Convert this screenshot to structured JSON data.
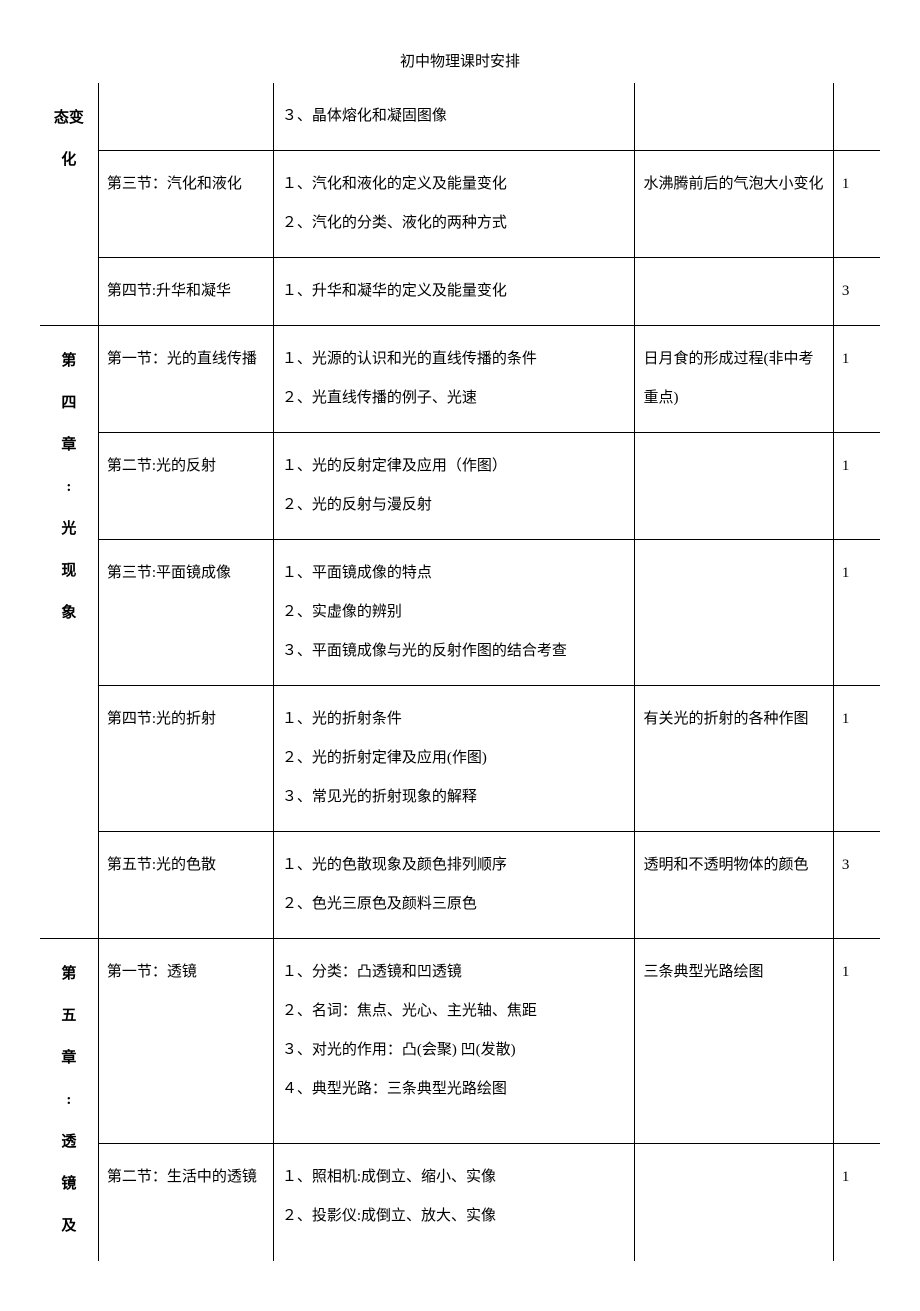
{
  "page_title": "初中物理课时安排",
  "table": {
    "column_widths": {
      "chapter": 50,
      "section": 150,
      "content": 310,
      "note": 170,
      "hours": 40
    },
    "font_size": 15,
    "line_height": 2.6,
    "border_color": "#000000",
    "text_color": "#000000",
    "background_color": "#ffffff",
    "rows": [
      {
        "chapter": "态变化",
        "chapter_continues": true,
        "sections": [
          {
            "section": "",
            "content": "３、晶体熔化和凝固图像",
            "note": "",
            "hours": "",
            "continues_from_above": true
          },
          {
            "section": "第三节：汽化和液化",
            "content": "１、汽化和液化的定义及能量变化\n２、汽化的分类、液化的两种方式",
            "note": "水沸腾前后的气泡大小变化",
            "hours": "1"
          },
          {
            "section": "第四节:升华和凝华",
            "content": "１、升华和凝华的定义及能量变化",
            "note": "",
            "hours": "3"
          }
        ]
      },
      {
        "chapter": "第四章:光现象",
        "sections": [
          {
            "section": "第一节：光的直线传播",
            "content": "１、光源的认识和光的直线传播的条件\n２、光直线传播的例子、光速",
            "note": "日月食的形成过程(非中考重点)",
            "hours": "1"
          },
          {
            "section": "第二节:光的反射",
            "content": "１、光的反射定律及应用（作图）\n２、光的反射与漫反射",
            "note": "",
            "hours": "1"
          },
          {
            "section": "第三节:平面镜成像",
            "content": "１、平面镜成像的特点\n２、实虚像的辨别\n３、平面镜成像与光的反射作图的结合考查",
            "note": "",
            "hours": "1"
          },
          {
            "section": "第四节:光的折射",
            "content": "１、光的折射条件\n２、光的折射定律及应用(作图)\n３、常见光的折射现象的解释",
            "note": "有关光的折射的各种作图",
            "hours": "1"
          },
          {
            "section": "第五节:光的色散",
            "content": "１、光的色散现象及颜色排列顺序\n２、色光三原色及颜料三原色",
            "note": "透明和不透明物体的颜色",
            "hours": "3"
          }
        ]
      },
      {
        "chapter": "第五章:透镜及",
        "chapter_continues_below": true,
        "sections": [
          {
            "section": "第一节：透镜",
            "content": "１、分类：凸透镜和凹透镜\n２、名词：焦点、光心、主光轴、焦距\n３、对光的作用：凸(会聚)  凹(发散)\n４、典型光路：三条典型光路绘图",
            "note": "三条典型光路绘图",
            "hours": "1"
          },
          {
            "section": "第二节：生活中的透镜",
            "content": "１、照相机:成倒立、缩小、实像\n２、投影仪:成倒立、放大、实像",
            "note": "",
            "hours": "1",
            "continues_below": true
          }
        ]
      }
    ]
  }
}
